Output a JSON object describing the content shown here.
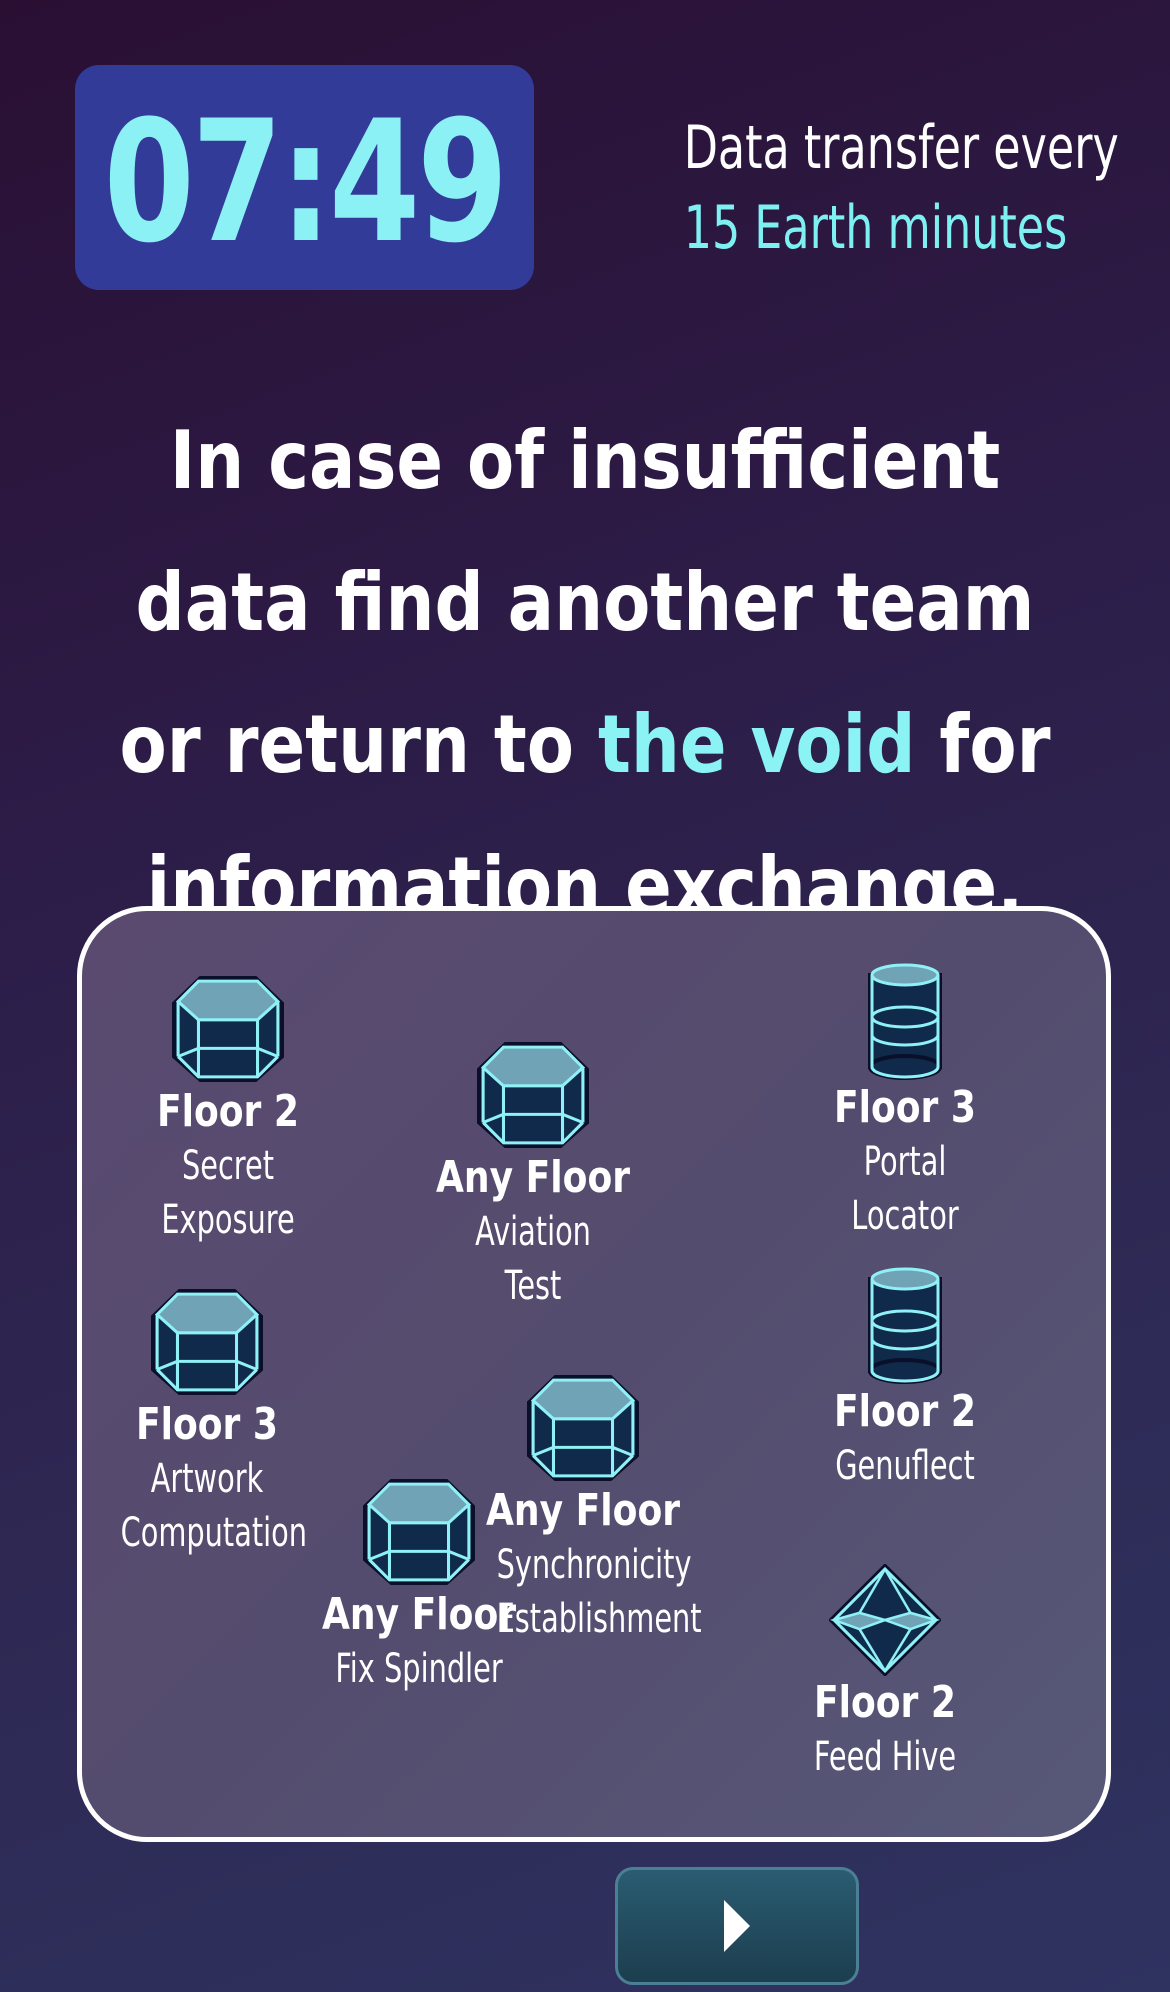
{
  "timer": {
    "value": "07:49"
  },
  "transfer": {
    "line1": "Data transfer every",
    "line2": "15 Earth minutes"
  },
  "headline": {
    "part1": "In case of insufficient data find another team or return to ",
    "highlight": "the void",
    "part2": " for information exchange."
  },
  "colors": {
    "accent": "#8cf1f4",
    "timer_bg": "#333b99",
    "button_bg": "#2a5c71"
  },
  "tasks": [
    {
      "floor": "Floor 2",
      "name_line1": "Secret",
      "name_line2": "Exposure",
      "icon": "hexagonal-prism-icon"
    },
    {
      "floor": "Any Floor",
      "name_line1": "Aviation",
      "name_line2": "Test",
      "icon": "hexagonal-prism-icon"
    },
    {
      "floor": "Floor 3",
      "name_line1": "Portal",
      "name_line2": "Locator",
      "icon": "cylinder-icon"
    },
    {
      "floor": "Floor 3",
      "name_line1": "Artwork",
      "name_line2": "Computation",
      "icon": "hexagonal-prism-icon"
    },
    {
      "floor": "Any Floor",
      "name_line1": "Synchronicity",
      "name_line2": "Establishment",
      "icon": "hexagonal-prism-icon"
    },
    {
      "floor": "Floor 2",
      "name_line1": "Genuflect",
      "name_line2": "",
      "icon": "cylinder-icon"
    },
    {
      "floor": "Any Floor",
      "name_line1": "Fix Spindler",
      "name_line2": "",
      "icon": "hexagonal-prism-icon"
    },
    {
      "floor": "Floor 2",
      "name_line1": "Feed Hive",
      "name_line2": "",
      "icon": "octahedron-icon"
    }
  ],
  "next_button": {
    "icon": "play-arrow-icon"
  }
}
